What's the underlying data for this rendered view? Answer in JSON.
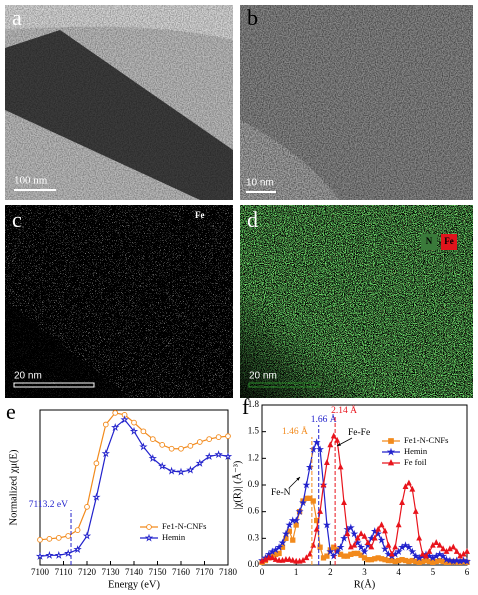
{
  "panels": [
    {
      "label": "a",
      "scale_bar": "100 nm"
    },
    {
      "label": "b",
      "scale_bar": "10 nm"
    },
    {
      "label": "c",
      "scale_bar": "20 nm",
      "element_labels": [
        "Fe"
      ]
    },
    {
      "label": "d",
      "scale_bar": "20 nm",
      "element_labels": [
        "N",
        "Fe"
      ]
    }
  ],
  "chart_data": [
    {
      "type": "line",
      "panel_label": "e",
      "x_label": "Energy (eV)",
      "y_label": "Normalized χμ(E)",
      "x": [
        7100,
        7104,
        7108,
        7112,
        7116,
        7120,
        7124,
        7128,
        7132,
        7136,
        7140,
        7144,
        7148,
        7152,
        7156,
        7160,
        7164,
        7168,
        7172,
        7176,
        7180
      ],
      "series": [
        {
          "name": "Fe1-N-CNFs",
          "color": "#f28a1c",
          "marker": "circle",
          "marker_filled": false,
          "values": [
            0.26,
            0.27,
            0.28,
            0.3,
            0.36,
            0.6,
            1.05,
            1.45,
            1.57,
            1.55,
            1.47,
            1.38,
            1.3,
            1.24,
            1.2,
            1.2,
            1.23,
            1.27,
            1.3,
            1.32,
            1.33
          ]
        },
        {
          "name": "Hemin",
          "color": "#2222cc",
          "marker": "star",
          "marker_filled": false,
          "values": [
            0.09,
            0.1,
            0.1,
            0.12,
            0.16,
            0.3,
            0.7,
            1.15,
            1.42,
            1.5,
            1.38,
            1.22,
            1.1,
            1.02,
            0.97,
            0.96,
            0.98,
            1.05,
            1.12,
            1.14,
            1.12
          ]
        }
      ],
      "xlim": [
        7100,
        7180
      ],
      "xticks": [
        7100,
        7110,
        7120,
        7130,
        7140,
        7150,
        7160,
        7170,
        7180
      ],
      "ylim": [
        0,
        1.6
      ],
      "annotations": [
        {
          "text": "7113.2 eV",
          "x": 7113.2,
          "color": "#2222cc"
        }
      ],
      "legend": "lower right"
    },
    {
      "type": "line",
      "panel_label": "f",
      "x_label": "R(Å)",
      "y_label": "|χ(R)| (Å⁻³)",
      "x": [
        0,
        0.1,
        0.2,
        0.3,
        0.4,
        0.5,
        0.6,
        0.7,
        0.8,
        0.9,
        1,
        1.1,
        1.2,
        1.3,
        1.4,
        1.5,
        1.6,
        1.7,
        1.8,
        1.9,
        2,
        2.1,
        2.2,
        2.3,
        2.4,
        2.5,
        2.6,
        2.7,
        2.8,
        2.9,
        3,
        3.1,
        3.2,
        3.3,
        3.4,
        3.5,
        3.6,
        3.7,
        3.8,
        3.9,
        4,
        4.1,
        4.2,
        4.3,
        4.4,
        4.5,
        4.6,
        4.7,
        4.8,
        4.9,
        5,
        5.1,
        5.2,
        5.3,
        5.4,
        5.5,
        5.6,
        5.7,
        5.8,
        5.9,
        6
      ],
      "series": [
        {
          "name": "Fe1-N-CNFs",
          "color": "#f28a1c",
          "marker": "square",
          "marker_filled": true,
          "values": [
            0.03,
            0.05,
            0.08,
            0.1,
            0.12,
            0.13,
            0.2,
            0.3,
            0.38,
            0.28,
            0.45,
            0.6,
            0.72,
            0.75,
            0.75,
            0.72,
            0.5,
            0.2,
            0.08,
            0.1,
            0.17,
            0.2,
            0.17,
            0.12,
            0.1,
            0.1,
            0.12,
            0.13,
            0.13,
            0.11,
            0.08,
            0.06,
            0.06,
            0.07,
            0.08,
            0.07,
            0.06,
            0.05,
            0.05,
            0.04,
            0.05,
            0.06,
            0.05,
            0.04,
            0.05,
            0.04,
            0.03,
            0.04,
            0.05,
            0.04,
            0.03,
            0.04,
            0.05,
            0.04,
            0.03,
            0.03,
            0.04,
            0.03,
            0.03,
            0.04,
            0.03
          ]
        },
        {
          "name": "Hemin",
          "color": "#2222cc",
          "marker": "star",
          "marker_filled": true,
          "values": [
            0.05,
            0.08,
            0.12,
            0.15,
            0.17,
            0.2,
            0.25,
            0.35,
            0.45,
            0.5,
            0.5,
            0.6,
            0.7,
            0.9,
            1.1,
            1.3,
            1.38,
            1.3,
            0.9,
            0.45,
            0.15,
            0.1,
            0.15,
            0.2,
            0.3,
            0.4,
            0.42,
            0.35,
            0.25,
            0.2,
            0.15,
            0.22,
            0.3,
            0.38,
            0.35,
            0.28,
            0.18,
            0.12,
            0.1,
            0.12,
            0.15,
            0.2,
            0.22,
            0.2,
            0.15,
            0.1,
            0.08,
            0.1,
            0.12,
            0.1,
            0.08,
            0.1,
            0.12,
            0.1,
            0.06,
            0.05,
            0.04,
            0.05,
            0.04,
            0.05,
            0.04
          ]
        },
        {
          "name": "Fe foil",
          "color": "#e8141c",
          "marker": "triangle",
          "marker_filled": true,
          "values": [
            0.04,
            0.06,
            0.08,
            0.08,
            0.06,
            0.05,
            0.05,
            0.06,
            0.06,
            0.05,
            0.04,
            0.04,
            0.05,
            0.08,
            0.12,
            0.22,
            0.4,
            0.6,
            0.9,
            1.15,
            1.35,
            1.45,
            1.4,
            1.1,
            0.7,
            0.35,
            0.2,
            0.22,
            0.3,
            0.35,
            0.32,
            0.25,
            0.2,
            0.3,
            0.4,
            0.45,
            0.38,
            0.22,
            0.12,
            0.2,
            0.45,
            0.7,
            0.88,
            0.92,
            0.85,
            0.6,
            0.3,
            0.12,
            0.1,
            0.15,
            0.22,
            0.25,
            0.22,
            0.18,
            0.15,
            0.18,
            0.2,
            0.15,
            0.1,
            0.12,
            0.15
          ]
        }
      ],
      "xlim": [
        0,
        6
      ],
      "xticks": [
        0,
        1,
        2,
        3,
        4,
        5,
        6
      ],
      "ylim": [
        0,
        1.8
      ],
      "yticks": [
        {
          "value": 0,
          "label": "0.0"
        },
        0.3,
        0.6,
        0.9,
        1.2,
        1.5,
        1.8
      ],
      "annotations": [
        {
          "text": "1.46 Å",
          "x": 1.46,
          "color": "#f28a1c"
        },
        {
          "text": "1.66 Å",
          "x": 1.66,
          "color": "#2222cc"
        },
        {
          "text": "2.14 Å",
          "x": 2.14,
          "color": "#e8141c"
        },
        {
          "text": "Fe-Fe"
        },
        {
          "text": "Fe-N"
        }
      ],
      "legend": "upper right"
    }
  ]
}
